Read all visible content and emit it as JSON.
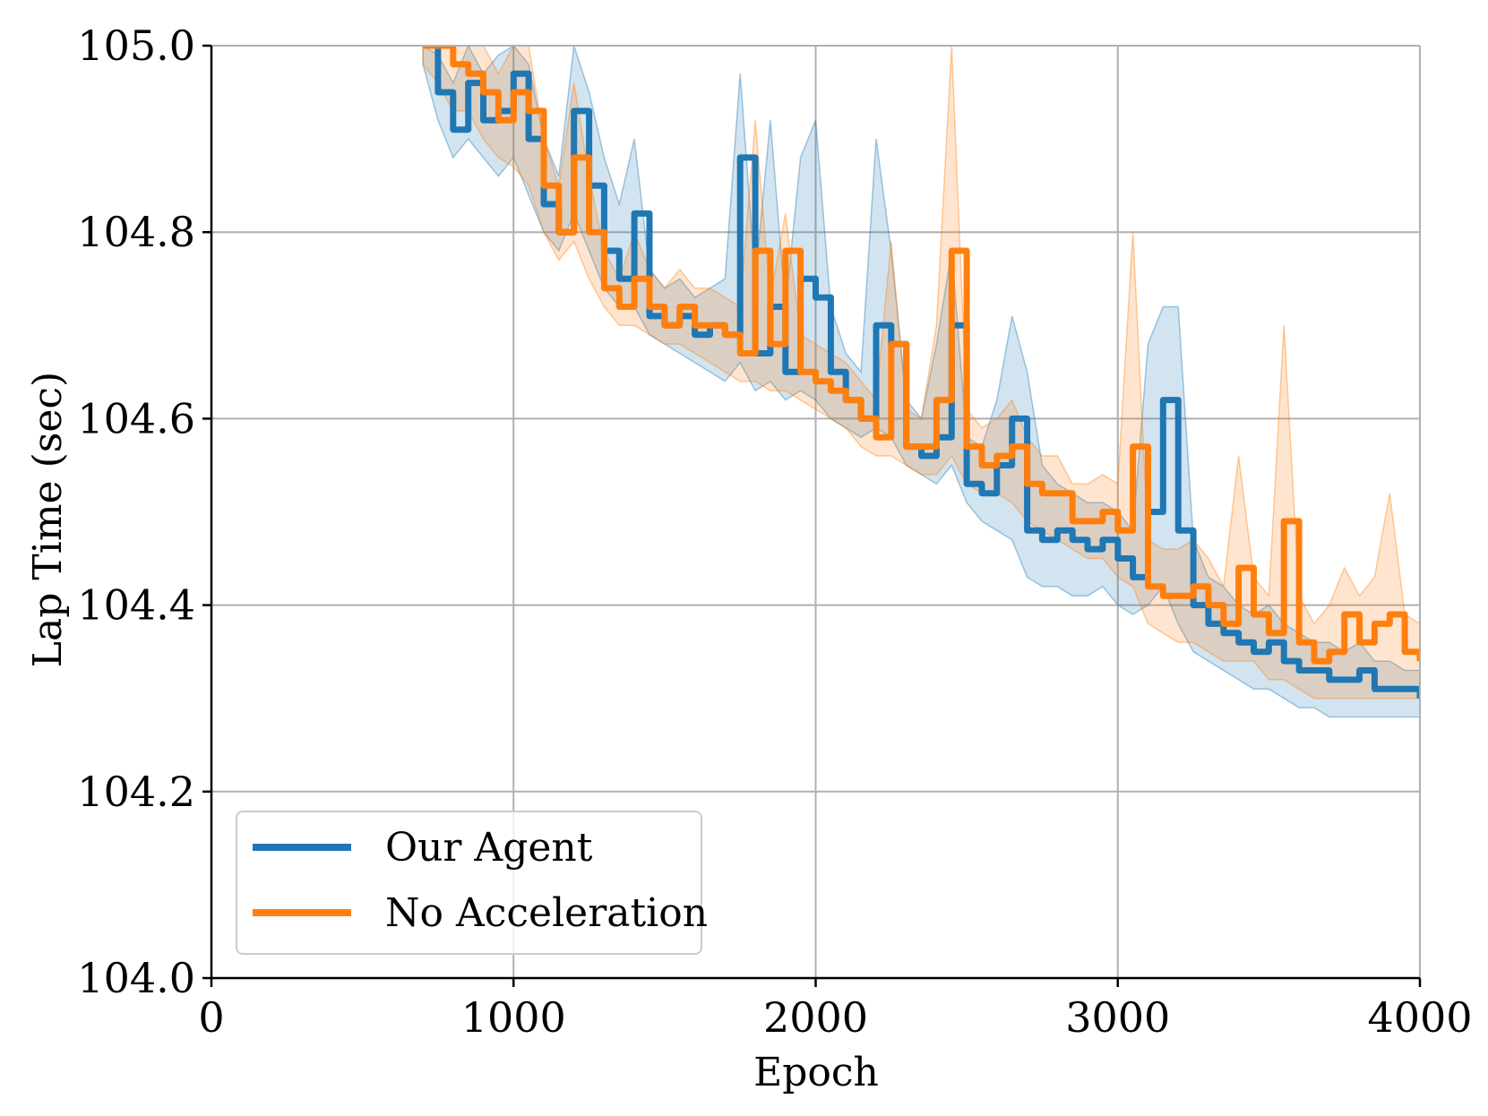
{
  "chart_data": {
    "type": "line",
    "title": "",
    "xlabel": "Epoch",
    "ylabel": "Lap Time (sec)",
    "xlim": [
      0,
      4000
    ],
    "ylim": [
      104.0,
      105.0
    ],
    "xticks": [
      0,
      1000,
      2000,
      3000,
      4000
    ],
    "xtick_labels": [
      "0",
      "1000",
      "2000",
      "3000",
      "4000"
    ],
    "yticks": [
      104.0,
      104.2,
      104.4,
      104.6,
      104.8,
      105.0
    ],
    "ytick_labels": [
      "104.0",
      "104.2",
      "104.4",
      "104.6",
      "104.8",
      "105.0"
    ],
    "grid": true,
    "legend_position": "bottom-left",
    "series": [
      {
        "name": "Our Agent",
        "color": "#1f77b4",
        "x": [
          700,
          750,
          800,
          850,
          900,
          950,
          1000,
          1050,
          1100,
          1150,
          1200,
          1250,
          1300,
          1350,
          1400,
          1450,
          1500,
          1550,
          1600,
          1650,
          1700,
          1750,
          1800,
          1850,
          1900,
          1950,
          2000,
          2050,
          2100,
          2150,
          2200,
          2250,
          2300,
          2350,
          2400,
          2450,
          2500,
          2550,
          2600,
          2650,
          2700,
          2750,
          2800,
          2850,
          2900,
          2950,
          3000,
          3050,
          3100,
          3150,
          3200,
          3250,
          3300,
          3350,
          3400,
          3450,
          3500,
          3550,
          3600,
          3650,
          3700,
          3750,
          3800,
          3850,
          3900,
          3950,
          4000
        ],
        "values": [
          105.0,
          104.95,
          104.91,
          104.96,
          104.92,
          104.93,
          104.97,
          104.9,
          104.83,
          104.8,
          104.93,
          104.85,
          104.78,
          104.75,
          104.82,
          104.71,
          104.7,
          104.71,
          104.69,
          104.7,
          104.69,
          104.88,
          104.67,
          104.72,
          104.65,
          104.75,
          104.73,
          104.65,
          104.62,
          104.6,
          104.7,
          104.68,
          104.57,
          104.56,
          104.58,
          104.7,
          104.53,
          104.52,
          104.55,
          104.6,
          104.48,
          104.47,
          104.48,
          104.47,
          104.46,
          104.47,
          104.45,
          104.43,
          104.5,
          104.62,
          104.48,
          104.4,
          104.38,
          104.37,
          104.36,
          104.35,
          104.36,
          104.34,
          104.33,
          104.33,
          104.32,
          104.32,
          104.33,
          104.31,
          104.31,
          104.31,
          104.3
        ],
        "band_lower": [
          104.98,
          104.92,
          104.88,
          104.9,
          104.88,
          104.86,
          104.88,
          104.84,
          104.8,
          104.78,
          104.82,
          104.78,
          104.74,
          104.72,
          104.72,
          104.69,
          104.68,
          104.67,
          104.66,
          104.65,
          104.64,
          104.66,
          104.63,
          104.64,
          104.62,
          104.63,
          104.62,
          104.6,
          104.59,
          104.58,
          104.59,
          104.58,
          104.55,
          104.54,
          104.53,
          104.55,
          104.51,
          104.49,
          104.48,
          104.47,
          104.43,
          104.42,
          104.42,
          104.41,
          104.41,
          104.42,
          104.4,
          104.39,
          104.4,
          104.42,
          104.38,
          104.35,
          104.34,
          104.33,
          104.32,
          104.31,
          104.31,
          104.3,
          104.29,
          104.29,
          104.28,
          104.28,
          104.28,
          104.28,
          104.28,
          104.28,
          104.28
        ],
        "band_upper": [
          105.02,
          104.99,
          104.96,
          105.0,
          104.97,
          104.99,
          105.0,
          104.98,
          104.9,
          104.86,
          105.0,
          104.95,
          104.88,
          104.83,
          104.9,
          104.76,
          104.74,
          104.75,
          104.73,
          104.74,
          104.75,
          104.97,
          104.75,
          104.92,
          104.72,
          104.88,
          104.92,
          104.72,
          104.67,
          104.65,
          104.9,
          104.78,
          104.62,
          104.6,
          104.68,
          104.78,
          104.58,
          104.57,
          104.62,
          104.71,
          104.65,
          104.55,
          104.53,
          104.52,
          104.51,
          104.51,
          104.5,
          104.48,
          104.68,
          104.72,
          104.72,
          104.47,
          104.43,
          104.42,
          104.4,
          104.39,
          104.4,
          104.38,
          104.37,
          104.36,
          104.36,
          104.35,
          104.36,
          104.34,
          104.34,
          104.33,
          104.33
        ]
      },
      {
        "name": "No Acceleration",
        "color": "#ff7f0e",
        "x": [
          700,
          750,
          800,
          850,
          900,
          950,
          1000,
          1050,
          1100,
          1150,
          1200,
          1250,
          1300,
          1350,
          1400,
          1450,
          1500,
          1550,
          1600,
          1650,
          1700,
          1750,
          1800,
          1850,
          1900,
          1950,
          2000,
          2050,
          2100,
          2150,
          2200,
          2250,
          2300,
          2350,
          2400,
          2450,
          2500,
          2550,
          2600,
          2650,
          2700,
          2750,
          2800,
          2850,
          2900,
          2950,
          3000,
          3050,
          3100,
          3150,
          3200,
          3250,
          3300,
          3350,
          3400,
          3450,
          3500,
          3550,
          3600,
          3650,
          3700,
          3750,
          3800,
          3850,
          3900,
          3950,
          4000
        ],
        "values": [
          105.0,
          105.0,
          104.98,
          104.97,
          104.95,
          104.92,
          104.95,
          104.93,
          104.85,
          104.8,
          104.88,
          104.8,
          104.74,
          104.72,
          104.75,
          104.72,
          104.7,
          104.72,
          104.7,
          104.7,
          104.69,
          104.67,
          104.78,
          104.68,
          104.78,
          104.65,
          104.64,
          104.63,
          104.62,
          104.6,
          104.58,
          104.68,
          104.57,
          104.57,
          104.62,
          104.78,
          104.57,
          104.55,
          104.56,
          104.57,
          104.53,
          104.52,
          104.52,
          104.49,
          104.49,
          104.5,
          104.48,
          104.57,
          104.42,
          104.41,
          104.41,
          104.42,
          104.4,
          104.38,
          104.44,
          104.39,
          104.37,
          104.49,
          104.36,
          104.34,
          104.35,
          104.39,
          104.36,
          104.38,
          104.39,
          104.35,
          104.34
        ],
        "band_lower": [
          104.98,
          104.96,
          104.93,
          104.93,
          104.9,
          104.88,
          104.87,
          104.85,
          104.8,
          104.77,
          104.79,
          104.75,
          104.72,
          104.7,
          104.7,
          104.69,
          104.68,
          104.68,
          104.67,
          104.66,
          104.65,
          104.64,
          104.64,
          104.63,
          104.63,
          104.62,
          104.61,
          104.6,
          104.59,
          104.57,
          104.56,
          104.56,
          104.55,
          104.54,
          104.54,
          104.56,
          104.53,
          104.52,
          104.52,
          104.51,
          104.49,
          104.48,
          104.47,
          104.46,
          104.45,
          104.45,
          104.43,
          104.42,
          104.38,
          104.37,
          104.36,
          104.36,
          104.35,
          104.34,
          104.34,
          104.34,
          104.32,
          104.32,
          104.31,
          104.3,
          104.3,
          104.3,
          104.3,
          104.3,
          104.3,
          104.3,
          104.3
        ],
        "band_upper": [
          105.02,
          105.04,
          105.02,
          105.0,
          105.0,
          104.97,
          105.0,
          105.0,
          104.9,
          104.85,
          104.96,
          104.86,
          104.78,
          104.75,
          104.8,
          104.76,
          104.74,
          104.76,
          104.74,
          104.74,
          104.73,
          104.72,
          104.92,
          104.73,
          104.82,
          104.69,
          104.68,
          104.67,
          104.66,
          104.64,
          104.62,
          104.79,
          104.61,
          104.6,
          104.7,
          105.0,
          104.61,
          104.59,
          104.6,
          104.62,
          104.58,
          104.56,
          104.56,
          104.53,
          104.53,
          104.54,
          104.53,
          104.8,
          104.47,
          104.46,
          104.46,
          104.47,
          104.45,
          104.42,
          104.56,
          104.43,
          104.41,
          104.7,
          104.41,
          104.38,
          104.4,
          104.44,
          104.41,
          104.43,
          104.52,
          104.39,
          104.38
        ]
      }
    ]
  }
}
